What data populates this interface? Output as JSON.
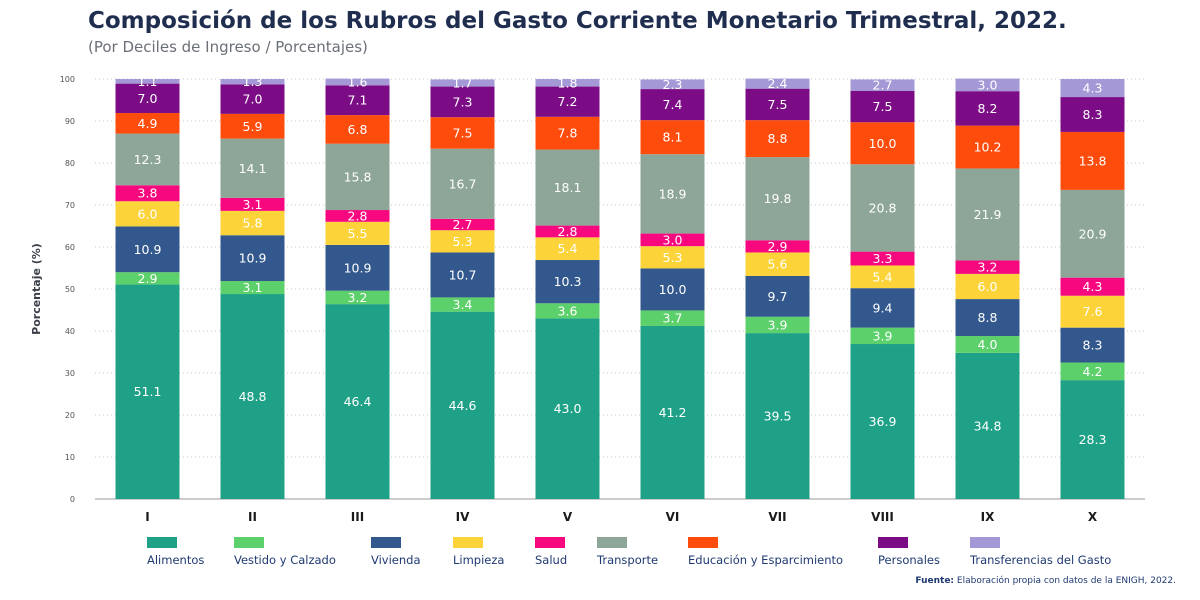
{
  "header": {
    "title": "Composición de los Rubros del Gasto Corriente Monetario Trimestral, 2022.",
    "subtitle": "(Por Deciles de Ingreso / Porcentajes)"
  },
  "source": {
    "label": "Fuente:",
    "text": "Elaboración propia con datos de la ENIGH, 2022."
  },
  "chart_data": {
    "type": "bar",
    "stacked": true,
    "ylabel": "Porcentaje (%)",
    "ylim": [
      0,
      100
    ],
    "yticks": [
      0,
      10,
      20,
      30,
      40,
      50,
      60,
      70,
      80,
      90,
      100
    ],
    "grid": true,
    "legend_position": "bottom",
    "categories": [
      "I",
      "II",
      "III",
      "IV",
      "V",
      "VI",
      "VII",
      "VIII",
      "IX",
      "X"
    ],
    "series": [
      {
        "name": "Alimentos",
        "color": "#1fa187",
        "label_color": "#ffffff",
        "values": [
          51.1,
          48.8,
          46.4,
          44.6,
          43.0,
          41.2,
          39.5,
          36.9,
          34.8,
          28.3
        ]
      },
      {
        "name": "Vestido y Calzado",
        "color": "#5cd06a",
        "label_color": "#ffffff",
        "values": [
          2.9,
          3.1,
          3.2,
          3.4,
          3.6,
          3.7,
          3.9,
          3.9,
          4.0,
          4.2
        ]
      },
      {
        "name": "Vivienda",
        "color": "#33588d",
        "label_color": "#ffffff",
        "values": [
          10.9,
          10.9,
          10.9,
          10.7,
          10.3,
          10.0,
          9.7,
          9.4,
          8.8,
          8.3
        ]
      },
      {
        "name": "Limpieza",
        "color": "#fcd43a",
        "label_color": "#ffffff",
        "values": [
          6.0,
          5.8,
          5.5,
          5.3,
          5.4,
          5.3,
          5.6,
          5.4,
          6.0,
          7.6
        ]
      },
      {
        "name": "Salud",
        "color": "#f7087e",
        "label_color": "#ffffff",
        "values": [
          3.8,
          3.1,
          2.8,
          2.7,
          2.8,
          3.0,
          2.9,
          3.3,
          3.2,
          4.3
        ]
      },
      {
        "name": "Transporte",
        "color": "#8ea698",
        "label_color": "#ffffff",
        "values": [
          12.3,
          14.1,
          15.8,
          16.7,
          18.1,
          18.9,
          19.8,
          20.8,
          21.9,
          20.9
        ]
      },
      {
        "name": "Educación y Esparcimiento",
        "color": "#fe4c0c",
        "label_color": "#ffffff",
        "values": [
          4.9,
          5.9,
          6.8,
          7.5,
          7.8,
          8.1,
          8.8,
          10.0,
          10.2,
          13.8
        ]
      },
      {
        "name": "Personales",
        "color": "#7b0c85",
        "label_color": "#ffffff",
        "values": [
          7.0,
          7.0,
          7.1,
          7.3,
          7.2,
          7.4,
          7.5,
          7.5,
          8.2,
          8.3
        ]
      },
      {
        "name": "Transferencias del Gasto",
        "color": "#a499d6",
        "label_color": "#ffffff",
        "values": [
          1.1,
          1.3,
          1.6,
          1.7,
          1.8,
          2.3,
          2.4,
          2.7,
          3.0,
          4.3
        ]
      }
    ]
  }
}
